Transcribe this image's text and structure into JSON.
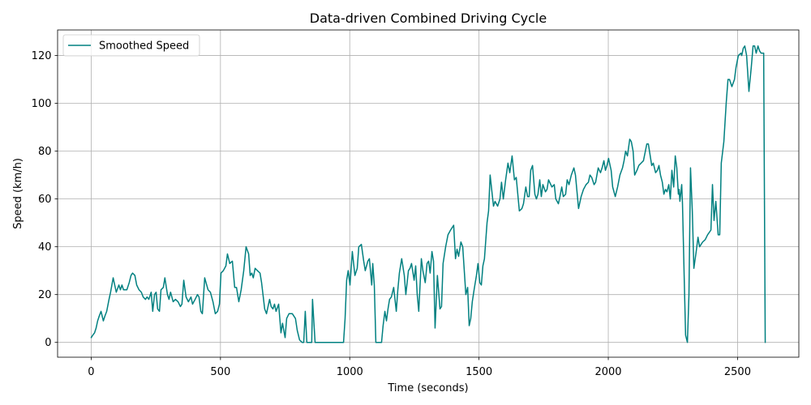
{
  "chart_data": {
    "type": "line",
    "title": "Data-driven Combined Driving Cycle",
    "xlabel": "Time (seconds)",
    "ylabel": "Speed (km/h)",
    "xlim": [
      -130,
      2737
    ],
    "ylim": [
      -6.2,
      130.7
    ],
    "xticks": [
      0,
      500,
      1000,
      1500,
      2000,
      2500
    ],
    "yticks": [
      0,
      20,
      40,
      60,
      80,
      100,
      120
    ],
    "grid": true,
    "legend": "upper left",
    "series": [
      {
        "name": "Smoothed Speed",
        "color": "#008080",
        "x": [
          0,
          6,
          13,
          19,
          25,
          31,
          38,
          47,
          53,
          60,
          69,
          75,
          85,
          91,
          97,
          107,
          113,
          119,
          125,
          132,
          138,
          147,
          154,
          160,
          169,
          176,
          185,
          194,
          201,
          210,
          216,
          223,
          232,
          238,
          245,
          251,
          257,
          264,
          270,
          279,
          285,
          295,
          301,
          307,
          317,
          326,
          336,
          345,
          351,
          358,
          367,
          376,
          386,
          392,
          402,
          411,
          417,
          424,
          430,
          439,
          452,
          461,
          471,
          480,
          489,
          496,
          502,
          511,
          521,
          527,
          536,
          546,
          555,
          562,
          571,
          580,
          590,
          599,
          609,
          615,
          621,
          627,
          634,
          643,
          653,
          659,
          671,
          678,
          690,
          696,
          703,
          709,
          715,
          725,
          734,
          740,
          750,
          756,
          765,
          778,
          790,
          797,
          806,
          816,
          822,
          828,
          834,
          847,
          853,
          856,
          866,
          976,
          982,
          988,
          994,
          1001,
          1010,
          1020,
          1029,
          1035,
          1045,
          1054,
          1060,
          1070,
          1076,
          1085,
          1089,
          1095,
          1101,
          1107,
          1123,
          1129,
          1136,
          1142,
          1148,
          1154,
          1161,
          1170,
          1180,
          1186,
          1192,
          1201,
          1211,
          1217,
          1227,
          1233,
          1239,
          1249,
          1255,
          1261,
          1267,
          1277,
          1283,
          1292,
          1299,
          1305,
          1311,
          1318,
          1324,
          1330,
          1339,
          1349,
          1355,
          1361,
          1371,
          1380,
          1390,
          1396,
          1402,
          1409,
          1415,
          1421,
          1430,
          1437,
          1449,
          1456,
          1462,
          1468,
          1474,
          1481,
          1490,
          1496,
          1503,
          1509,
          1515,
          1521,
          1531,
          1537,
          1543,
          1550,
          1556,
          1562,
          1572,
          1581,
          1587,
          1594,
          1603,
          1612,
          1619,
          1628,
          1637,
          1644,
          1650,
          1656,
          1666,
          1672,
          1681,
          1688,
          1694,
          1700,
          1707,
          1716,
          1722,
          1728,
          1735,
          1741,
          1747,
          1757,
          1763,
          1769,
          1782,
          1791,
          1797,
          1807,
          1813,
          1820,
          1826,
          1835,
          1841,
          1848,
          1857,
          1867,
          1873,
          1879,
          1885,
          1895,
          1904,
          1914,
          1923,
          1929,
          1936,
          1945,
          1951,
          1961,
          1970,
          1976,
          1983,
          1989,
          1995,
          2001,
          2011,
          2017,
          2027,
          2036,
          2045,
          2055,
          2061,
          2067,
          2074,
          2083,
          2089,
          2096,
          2102,
          2111,
          2118,
          2127,
          2136,
          2149,
          2155,
          2168,
          2174,
          2183,
          2190,
          2196,
          2202,
          2209,
          2215,
          2221,
          2227,
          2234,
          2240,
          2246,
          2253,
          2259,
          2265,
          2271,
          2274,
          2277,
          2281,
          2284,
          2287,
          2293,
          2299,
          2306,
          2312,
          2318,
          2325,
          2331,
          2340,
          2347,
          2353,
          2365,
          2375,
          2384,
          2397,
          2403,
          2409,
          2416,
          2425,
          2431,
          2437,
          2447,
          2456,
          2463,
          2469,
          2478,
          2488,
          2494,
          2503,
          2513,
          2516,
          2522,
          2528,
          2535,
          2541,
          2544,
          2553,
          2560,
          2566,
          2572,
          2579,
          2585,
          2591,
          2597,
          2601,
          2604,
          2607
        ],
        "y": [
          2,
          3,
          4,
          6,
          9,
          11,
          13,
          9,
          11,
          13,
          18,
          21,
          27,
          24,
          21,
          24,
          22,
          24,
          22,
          22,
          22,
          25,
          28,
          29,
          28,
          24,
          22,
          21,
          19,
          18,
          19,
          18,
          21,
          13,
          20,
          21,
          14,
          13,
          22,
          23,
          27,
          20,
          18,
          21,
          17,
          18,
          17,
          15,
          16,
          26,
          19,
          17,
          19,
          16,
          18,
          20,
          19,
          13,
          12,
          27,
          22,
          21,
          17,
          12,
          13,
          16,
          29,
          30,
          32,
          37,
          33,
          34,
          23,
          23,
          17,
          22,
          30,
          40,
          37,
          28,
          29,
          27,
          31,
          30,
          29,
          25,
          14,
          12,
          18,
          15,
          14,
          16,
          13,
          16,
          4,
          8,
          2,
          10,
          12,
          12,
          10,
          5,
          1,
          0,
          0,
          13,
          0,
          0,
          0,
          18,
          0,
          0,
          10,
          26,
          30,
          24,
          38,
          28,
          31,
          40,
          41,
          34,
          30,
          34,
          35,
          24,
          33,
          24,
          0,
          0,
          0,
          7,
          13,
          9,
          14,
          18,
          19,
          23,
          13,
          22,
          29,
          35,
          28,
          20,
          30,
          31,
          33,
          26,
          32,
          20,
          13,
          35,
          30,
          25,
          33,
          34,
          29,
          38,
          34,
          6,
          28,
          14,
          15,
          33,
          40,
          45,
          47,
          48,
          49,
          35,
          39,
          36,
          42,
          40,
          20,
          23,
          7,
          10,
          17,
          22,
          28,
          33,
          25,
          24,
          32,
          35,
          50,
          55,
          70,
          63,
          57,
          59,
          57,
          60,
          67,
          60,
          68,
          75,
          71,
          78,
          68,
          69,
          62,
          55,
          56,
          58,
          65,
          61,
          61,
          72,
          74,
          62,
          60,
          62,
          68,
          61,
          66,
          63,
          64,
          68,
          65,
          66,
          60,
          58,
          61,
          65,
          61,
          62,
          68,
          66,
          70,
          73,
          70,
          63,
          56,
          61,
          64,
          66,
          67,
          70,
          69,
          66,
          67,
          73,
          71,
          73,
          76,
          72,
          74,
          77,
          72,
          65,
          61,
          65,
          70,
          73,
          76,
          80,
          78,
          85,
          84,
          80,
          70,
          72,
          74,
          75,
          76,
          83,
          83,
          74,
          75,
          71,
          72,
          74,
          70,
          67,
          62,
          64,
          63,
          66,
          60,
          72,
          65,
          78,
          73,
          62,
          64,
          59,
          63,
          66,
          58,
          30,
          3,
          0,
          20,
          73,
          55,
          31,
          38,
          44,
          40,
          42,
          43,
          45,
          47,
          66,
          51,
          59,
          45,
          45,
          75,
          84,
          100,
          110,
          110,
          107,
          110,
          115,
          120,
          121,
          120,
          123,
          124,
          120,
          110,
          105,
          115,
          124,
          124,
          121,
          124,
          122,
          121,
          121,
          121,
          60,
          0
        ]
      }
    ]
  }
}
